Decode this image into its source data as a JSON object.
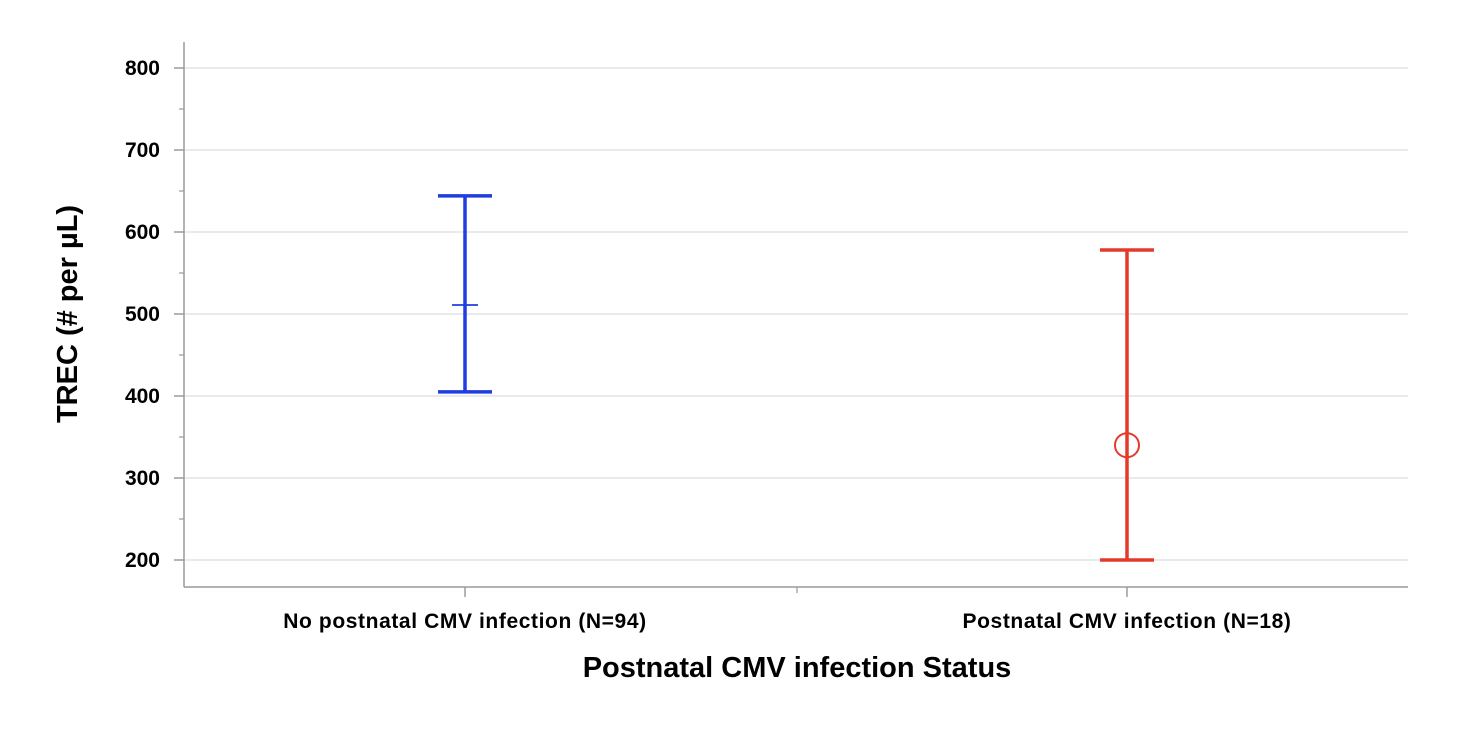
{
  "chart_data": {
    "type": "errorbar",
    "title": "",
    "xlabel": "Postnatal CMV infection Status",
    "ylabel": "TREC (# per µL)",
    "ylim": [
      170,
      830
    ],
    "yticks": [
      200,
      300,
      400,
      500,
      600,
      700,
      800
    ],
    "ytick_labels": [
      "200",
      "300",
      "400",
      "500",
      "600",
      "700",
      "800"
    ],
    "grid": "horizontal",
    "categories": [
      "No postnatal CMV infection (N=94)",
      "Postnatal CMV infection (N=18)"
    ],
    "series": [
      {
        "category": "No postnatal CMV infection (N=94)",
        "center": 511,
        "lower": 405,
        "upper": 644,
        "marker": "plus",
        "color": "#1f3de0"
      },
      {
        "category": "Postnatal CMV infection (N=18)",
        "center": 340,
        "lower": 200,
        "upper": 578,
        "marker": "circle",
        "color": "#e33a2c"
      }
    ]
  },
  "colors": {
    "axis": "#9a9a9a",
    "grid": "#e3e3e3"
  }
}
